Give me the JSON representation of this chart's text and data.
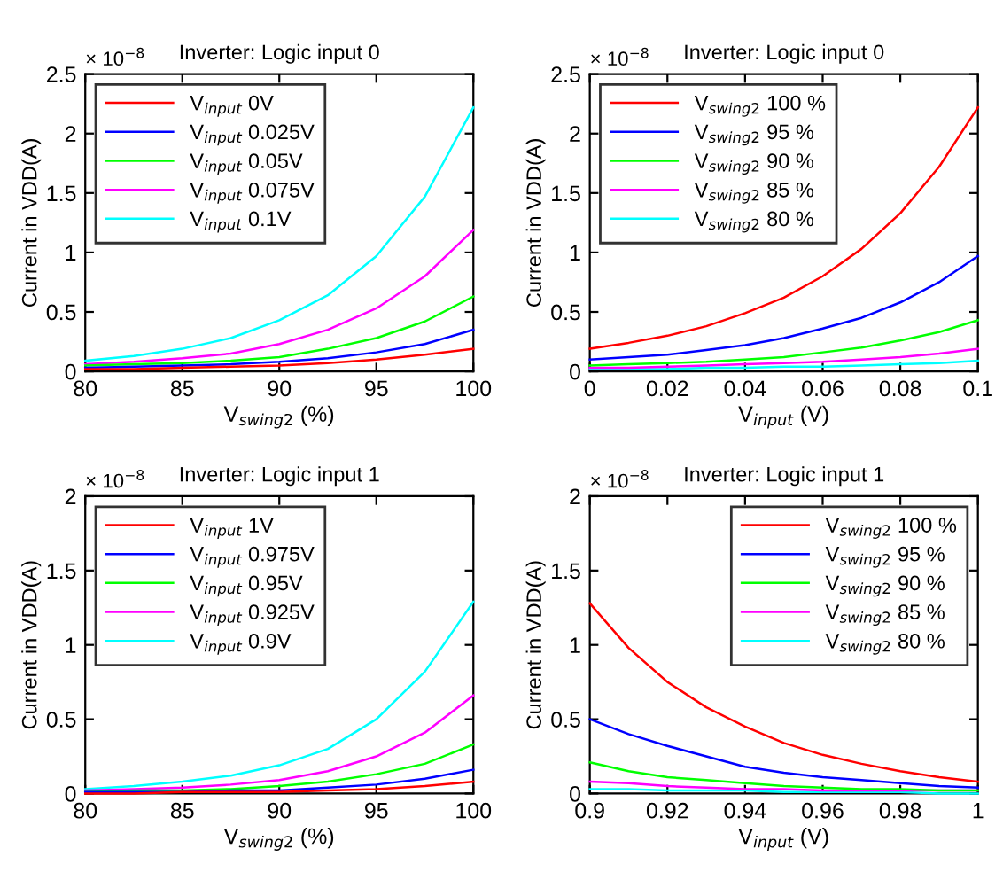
{
  "chart_data": [
    {
      "type": "line",
      "title": "Inverter: Logic input 0",
      "xlabel": "V$_{swing2}$ (%)",
      "ylabel": "Current in VDD(A)",
      "annotations": [
        "× 10$^{−8}$"
      ],
      "x": [
        80,
        82.5,
        85,
        87.5,
        90,
        92.5,
        95,
        97.5,
        100
      ],
      "xlim": [
        80,
        100
      ],
      "xticks": [
        80,
        85,
        90,
        95,
        100
      ],
      "ylim": [
        0,
        2.5
      ],
      "yticks": [
        0,
        0.5,
        1,
        1.5,
        2,
        2.5
      ],
      "legend": "top left",
      "grid": false,
      "series": [
        {
          "name": "V$_{input}$ 0V",
          "color": "#ff0000",
          "values": [
            0.02,
            0.02,
            0.03,
            0.04,
            0.05,
            0.07,
            0.1,
            0.14,
            0.19
          ]
        },
        {
          "name": "V$_{input}$ 0.025V",
          "color": "#0000ff",
          "values": [
            0.03,
            0.04,
            0.05,
            0.06,
            0.08,
            0.11,
            0.16,
            0.23,
            0.35
          ]
        },
        {
          "name": "V$_{input}$ 0.05V",
          "color": "#00ff00",
          "values": [
            0.05,
            0.06,
            0.07,
            0.09,
            0.12,
            0.19,
            0.28,
            0.42,
            0.63
          ]
        },
        {
          "name": "V$_{input}$ 0.075V",
          "color": "#ff00ff",
          "values": [
            0.06,
            0.08,
            0.11,
            0.15,
            0.23,
            0.35,
            0.53,
            0.8,
            1.19
          ]
        },
        {
          "name": "V$_{input}$ 0.1V",
          "color": "#00ffff",
          "values": [
            0.09,
            0.13,
            0.19,
            0.28,
            0.43,
            0.64,
            0.97,
            1.47,
            2.22
          ]
        }
      ]
    },
    {
      "type": "line",
      "title": "Inverter: Logic input 0",
      "xlabel": "V$_{input}$ (V)",
      "ylabel": "Current in VDD(A)",
      "annotations": [
        "× 10$^{−8}$"
      ],
      "x": [
        0,
        0.01,
        0.02,
        0.03,
        0.04,
        0.05,
        0.06,
        0.07,
        0.08,
        0.09,
        0.1
      ],
      "xlim": [
        0,
        0.1
      ],
      "xticks": [
        0,
        0.02,
        0.04,
        0.06,
        0.08,
        0.1
      ],
      "ylim": [
        0,
        2.5
      ],
      "yticks": [
        0,
        0.5,
        1,
        1.5,
        2,
        2.5
      ],
      "legend": "top left",
      "grid": false,
      "series": [
        {
          "name": "V$_{swing2}$ 100 %",
          "color": "#ff0000",
          "values": [
            0.19,
            0.24,
            0.3,
            0.38,
            0.49,
            0.62,
            0.8,
            1.03,
            1.33,
            1.72,
            2.22
          ]
        },
        {
          "name": "V$_{swing2}$ 95 %",
          "color": "#0000ff",
          "values": [
            0.1,
            0.12,
            0.14,
            0.18,
            0.22,
            0.28,
            0.36,
            0.45,
            0.58,
            0.75,
            0.97
          ]
        },
        {
          "name": "V$_{swing2}$ 90 %",
          "color": "#00ff00",
          "values": [
            0.05,
            0.06,
            0.07,
            0.08,
            0.1,
            0.12,
            0.16,
            0.2,
            0.26,
            0.33,
            0.43
          ]
        },
        {
          "name": "V$_{swing2}$ 85 %",
          "color": "#ff00ff",
          "values": [
            0.03,
            0.03,
            0.04,
            0.05,
            0.06,
            0.07,
            0.08,
            0.1,
            0.12,
            0.15,
            0.19
          ]
        },
        {
          "name": "V$_{swing2}$ 80 %",
          "color": "#00ffff",
          "values": [
            0.02,
            0.02,
            0.02,
            0.03,
            0.03,
            0.04,
            0.04,
            0.05,
            0.06,
            0.07,
            0.09
          ]
        }
      ]
    },
    {
      "type": "line",
      "title": "Inverter: Logic input 1",
      "xlabel": "V$_{swing2}$ (%)",
      "ylabel": "Current in VDD(A)",
      "annotations": [
        "× 10$^{−8}$"
      ],
      "x": [
        80,
        82.5,
        85,
        87.5,
        90,
        92.5,
        95,
        97.5,
        100
      ],
      "xlim": [
        80,
        100
      ],
      "xticks": [
        80,
        85,
        90,
        95,
        100
      ],
      "ylim": [
        0,
        2
      ],
      "yticks": [
        0,
        0.5,
        1,
        1.5,
        2
      ],
      "legend": "top left",
      "grid": false,
      "series": [
        {
          "name": "V$_{input}$ 1V",
          "color": "#ff0000",
          "values": [
            0,
            0,
            0.01,
            0.01,
            0.01,
            0.02,
            0.03,
            0.05,
            0.08
          ]
        },
        {
          "name": "V$_{input}$ 0.975V",
          "color": "#0000ff",
          "values": [
            0.01,
            0.01,
            0.01,
            0.02,
            0.02,
            0.04,
            0.06,
            0.1,
            0.16
          ]
        },
        {
          "name": "V$_{input}$ 0.95V",
          "color": "#00ff00",
          "values": [
            0.01,
            0.02,
            0.02,
            0.03,
            0.05,
            0.08,
            0.13,
            0.2,
            0.33
          ]
        },
        {
          "name": "V$_{input}$ 0.925V",
          "color": "#ff00ff",
          "values": [
            0.02,
            0.03,
            0.04,
            0.06,
            0.09,
            0.15,
            0.25,
            0.41,
            0.66
          ]
        },
        {
          "name": "V$_{input}$ 0.9V",
          "color": "#00ffff",
          "values": [
            0.03,
            0.05,
            0.08,
            0.12,
            0.19,
            0.3,
            0.5,
            0.82,
            1.29
          ]
        }
      ]
    },
    {
      "type": "line",
      "title": "Inverter: Logic input 1",
      "xlabel": "V$_{input}$ (V)",
      "ylabel": "Current in VDD(A)",
      "annotations": [
        "× 10$^{−8}$"
      ],
      "x": [
        0.9,
        0.91,
        0.92,
        0.93,
        0.94,
        0.95,
        0.96,
        0.97,
        0.98,
        0.99,
        1
      ],
      "xlim": [
        0.9,
        1
      ],
      "xticks": [
        0.9,
        0.92,
        0.94,
        0.96,
        0.98,
        1
      ],
      "ylim": [
        0,
        2
      ],
      "yticks": [
        0,
        0.5,
        1,
        1.5,
        2
      ],
      "legend": "top right",
      "grid": false,
      "series": [
        {
          "name": "V$_{swing2}$ 100 %",
          "color": "#ff0000",
          "values": [
            1.28,
            0.98,
            0.75,
            0.58,
            0.45,
            0.34,
            0.26,
            0.2,
            0.15,
            0.11,
            0.08
          ]
        },
        {
          "name": "V$_{swing2}$ 95 %",
          "color": "#0000ff",
          "values": [
            0.5,
            0.4,
            0.32,
            0.25,
            0.18,
            0.14,
            0.11,
            0.09,
            0.07,
            0.05,
            0.04
          ]
        },
        {
          "name": "V$_{swing2}$ 90 %",
          "color": "#00ff00",
          "values": [
            0.21,
            0.15,
            0.11,
            0.09,
            0.07,
            0.05,
            0.04,
            0.03,
            0.03,
            0.02,
            0.02
          ]
        },
        {
          "name": "V$_{swing2}$ 85 %",
          "color": "#ff00ff",
          "values": [
            0.08,
            0.07,
            0.05,
            0.04,
            0.03,
            0.03,
            0.02,
            0.02,
            0.02,
            0.02,
            0.02
          ]
        },
        {
          "name": "V$_{swing2}$ 80 %",
          "color": "#00ffff",
          "values": [
            0.03,
            0.03,
            0.02,
            0.02,
            0.02,
            0.01,
            0.01,
            0.01,
            0.01,
            0,
            0
          ]
        }
      ]
    }
  ]
}
